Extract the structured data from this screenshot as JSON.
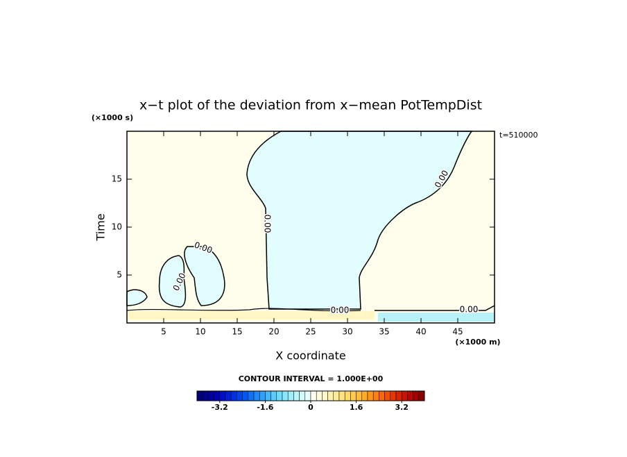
{
  "chart_data": {
    "type": "contour",
    "title": "x−t plot of the deviation from x−mean PotTempDist",
    "y_label": "Time",
    "y_unit": "(×1000 s)",
    "x_label": "X coordinate",
    "x_unit": "(×1000 m)",
    "time_label": "t=510000",
    "contour_interval_label": "CONTOUR INTERVAL = 1.000E+00",
    "contour_label": "0.00",
    "xlim": [
      0,
      50
    ],
    "xticks": [
      5,
      10,
      15,
      20,
      25,
      30,
      35,
      40,
      45
    ],
    "ylim": [
      0,
      20
    ],
    "yticks": [
      5,
      10,
      15
    ],
    "fill_colors": {
      "negative": "#e2fdfd",
      "positive": "#fffdec",
      "warm_band": "#fff6c4",
      "cool_band": "#b8f2f6"
    },
    "colorbar": {
      "lim": [
        -4,
        4
      ],
      "ticks": [
        -3.2,
        -1.6,
        0,
        1.6,
        3.2
      ],
      "colors": [
        "#00007a",
        "#00008c",
        "#00009e",
        "#0000b4",
        "#0010c8",
        "#0020d8",
        "#0030e4",
        "#0044ec",
        "#0058f2",
        "#1070f6",
        "#2088f8",
        "#30a0fa",
        "#40b8fc",
        "#58ccfc",
        "#70dcfc",
        "#88e8fc",
        "#a0f0fc",
        "#b8f6fc",
        "#d0fafc",
        "#e8fdfd",
        "#fffff0",
        "#fffce0",
        "#fff8c8",
        "#fff2b0",
        "#ffec98",
        "#ffe480",
        "#ffda68",
        "#ffcc50",
        "#ffbc3c",
        "#ffaa28",
        "#ff9618",
        "#ff800c",
        "#f86804",
        "#f05000",
        "#e43800",
        "#d82400",
        "#c81400",
        "#b40800",
        "#a00000",
        "#8a0000"
      ]
    }
  }
}
